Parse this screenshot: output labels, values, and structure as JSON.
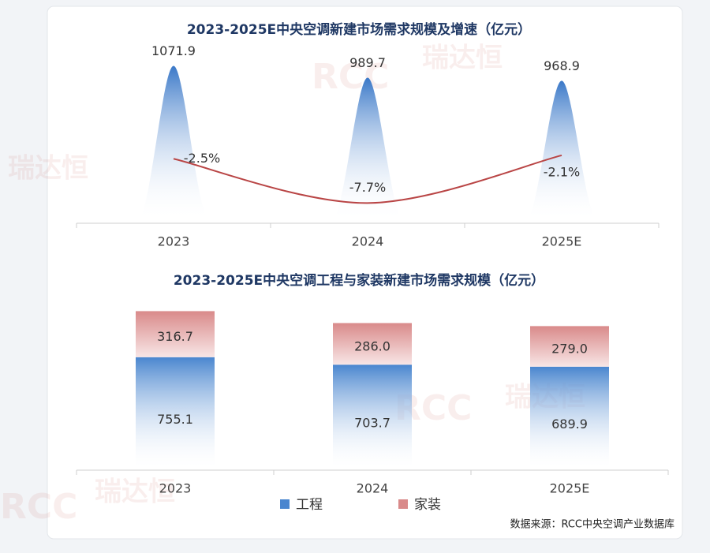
{
  "watermark": [
    "RCC",
    "瑞达恒"
  ],
  "chart_data": [
    {
      "type": "bar",
      "title": "2023-2025E中央空调新建市场需求规模及增速（亿元）",
      "categories": [
        "2023",
        "2024",
        "2025E"
      ],
      "ylim": [
        0,
        1200
      ],
      "y2lim": [
        -9.8,
        10.6
      ],
      "series": [
        {
          "color": "#3a78c8",
          "values": [
            1071.9,
            989.7,
            968.9
          ]
        },
        {
          "type": "line",
          "axis": "y2",
          "color": "#b94545",
          "values": [
            -2.5,
            -7.7,
            -2.1
          ],
          "value_labels": [
            "-2.5%",
            "-7.7%",
            "-2.1%"
          ]
        }
      ]
    },
    {
      "type": "stacked-bar",
      "title": "2023-2025E中央空调工程与家装新建市场需求规模（亿元）",
      "categories": [
        "2023",
        "2024",
        "2025E"
      ],
      "ylim": [
        0,
        1150
      ],
      "series": [
        {
          "name": "工程",
          "color": "#4a86cf",
          "values": [
            755.1,
            703.7,
            689.9
          ]
        },
        {
          "name": "家装",
          "color": "#d98a8a",
          "values": [
            316.7,
            286.0,
            279.0
          ],
          "value_labels": [
            "316.7",
            "286.0",
            "279.0"
          ]
        }
      ],
      "source": "数据来源：RCC中央空调产业数据库"
    }
  ]
}
